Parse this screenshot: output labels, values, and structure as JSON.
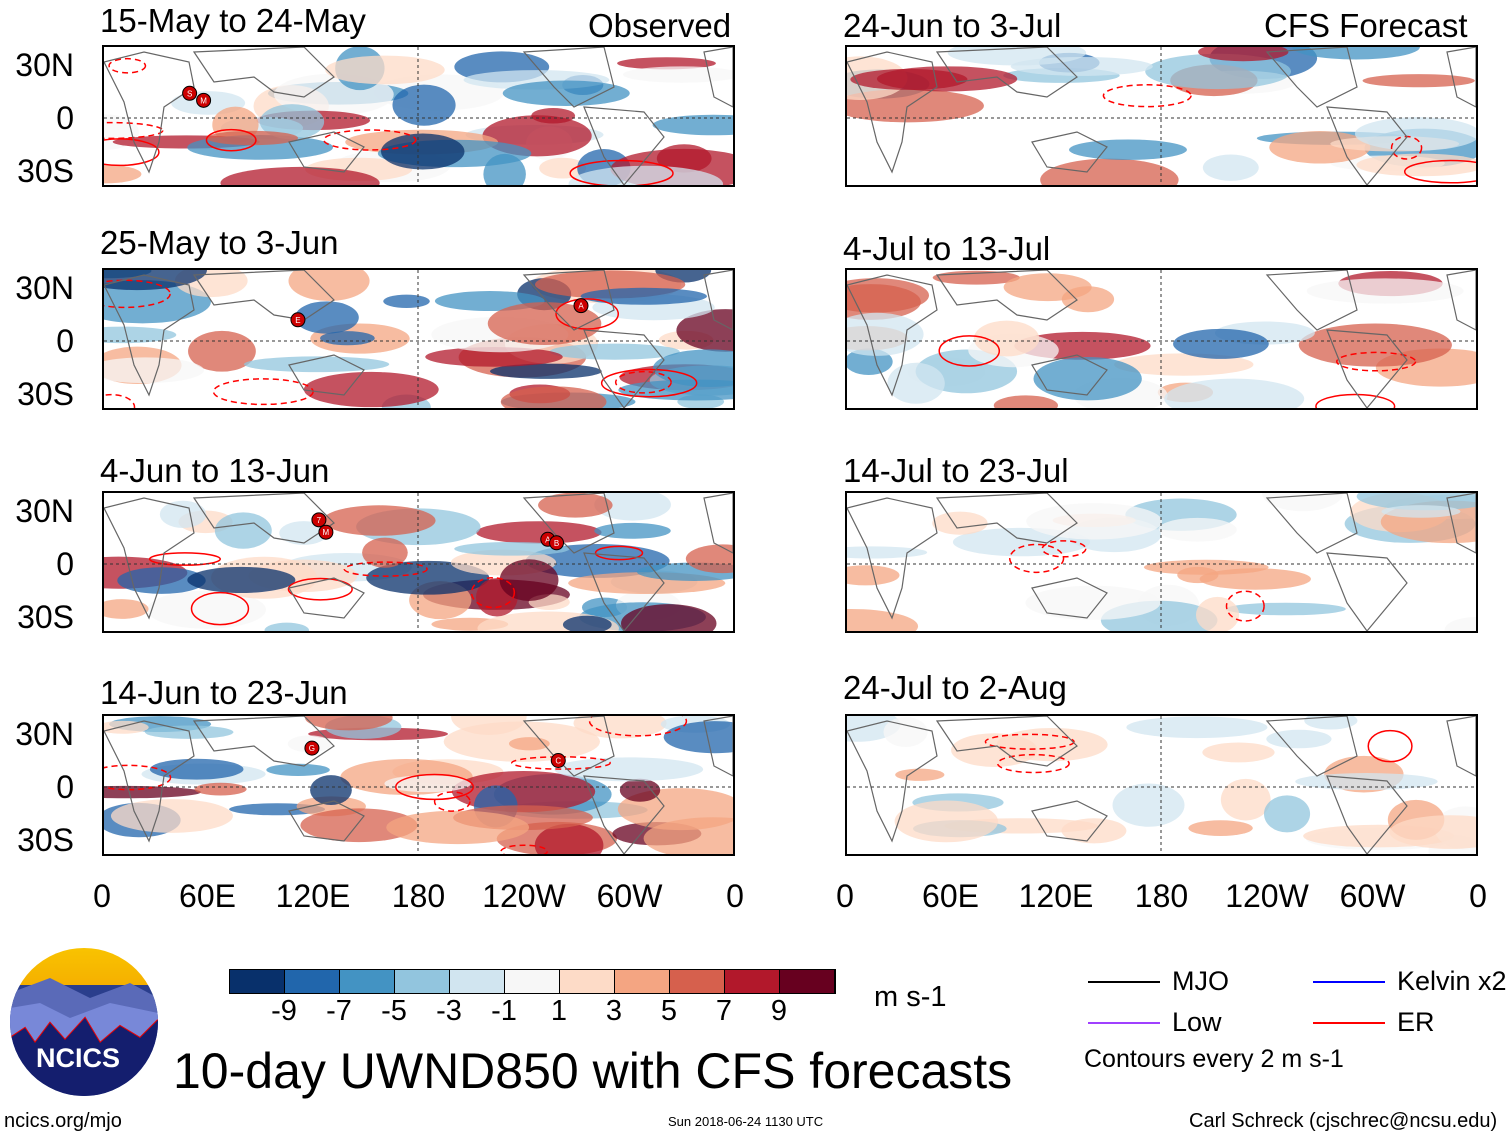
{
  "header": {
    "observed_label": "Observed",
    "forecast_label": "CFS Forecast"
  },
  "panels": {
    "observed": [
      {
        "title": "15-May to 24-May",
        "storms": [
          {
            "label": "S",
            "lon": 49,
            "lat": 14
          },
          {
            "label": "M",
            "lon": 57,
            "lat": 10
          }
        ]
      },
      {
        "title": "25-May to 3-Jun",
        "storms": [
          {
            "label": "E",
            "lon": 111,
            "lat": 12
          },
          {
            "label": "A",
            "lon": 273,
            "lat": 20
          }
        ]
      },
      {
        "title": "4-Jun to 13-Jun",
        "storms": [
          {
            "label": "7",
            "lon": 123,
            "lat": 25
          },
          {
            "label": "M",
            "lon": 127,
            "lat": 18
          },
          {
            "label": "A",
            "lon": 254,
            "lat": 14
          },
          {
            "label": "B",
            "lon": 259,
            "lat": 12
          }
        ]
      },
      {
        "title": "14-Jun to 23-Jun",
        "storms": [
          {
            "label": "G",
            "lon": 119,
            "lat": 22
          },
          {
            "label": "C",
            "lon": 260,
            "lat": 15
          }
        ]
      }
    ],
    "forecast": [
      {
        "title": "24-Jun to 3-Jul"
      },
      {
        "title": "4-Jul to 13-Jul"
      },
      {
        "title": "14-Jul to 23-Jul"
      },
      {
        "title": "24-Jul to 2-Aug"
      }
    ]
  },
  "axes": {
    "y_labels": [
      "30N",
      "0",
      "30S"
    ],
    "x_labels": [
      "0",
      "60E",
      "120E",
      "180",
      "120W",
      "60W",
      "0"
    ]
  },
  "colorbar": {
    "colors": [
      "#08306b",
      "#2166ac",
      "#4393c3",
      "#92c5de",
      "#d1e5f0",
      "#f7f7f7",
      "#fddbc7",
      "#f4a582",
      "#d6604d",
      "#b2182b",
      "#67001f"
    ],
    "labels": [
      "-9",
      "-7",
      "-5",
      "-3",
      "-1",
      "1",
      "3",
      "5",
      "7",
      "9"
    ],
    "units": "m s-1"
  },
  "legend": {
    "items": [
      {
        "label": "MJO",
        "color": "#000000"
      },
      {
        "label": "Kelvin x2",
        "color": "#0000ff"
      },
      {
        "label": "Low",
        "color": "#a040ff"
      },
      {
        "label": "ER",
        "color": "#ff0000"
      }
    ],
    "contours": "Contours every 2 m s-1"
  },
  "title": "10-day UWND850 with CFS forecasts",
  "logo_text": "NCICS",
  "footer": {
    "url": "ncics.org/mjo",
    "timestamp": "Sun 2018-06-24 1130 UTC",
    "author": "Carl Schreck (cjschrec@ncsu.edu)"
  }
}
